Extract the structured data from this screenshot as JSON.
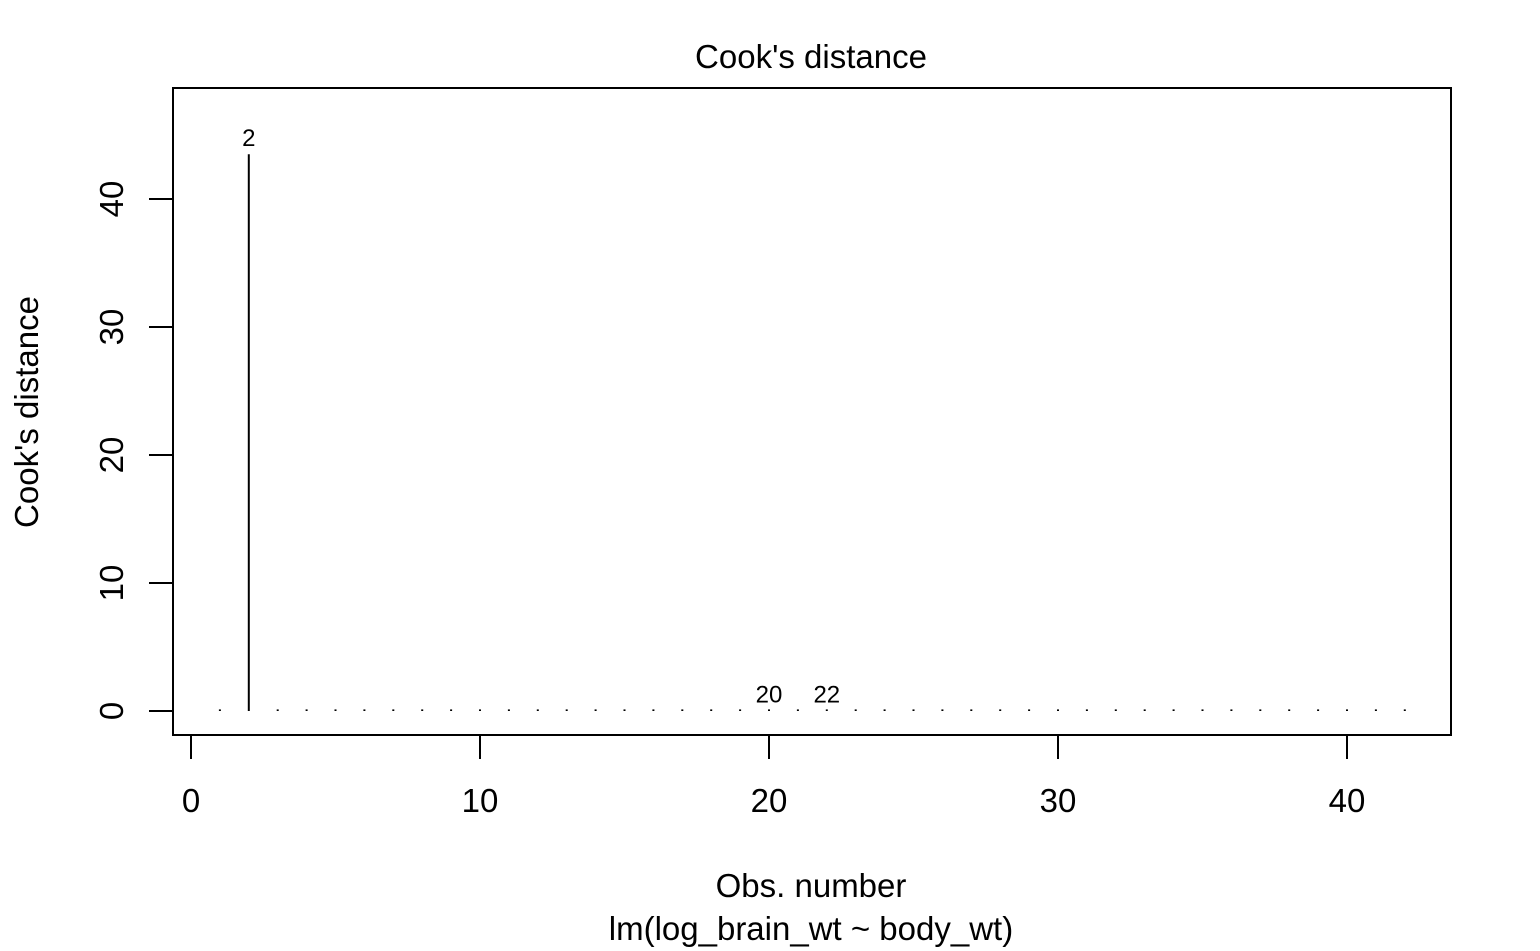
{
  "chart_data": {
    "type": "bar",
    "title": "Cook's distance",
    "xlabel": "Obs. number",
    "ylabel": "Cook's distance",
    "caption": "lm(log_brain_wt ~ body_wt)",
    "xlim": [
      0,
      43
    ],
    "ylim": [
      0,
      46
    ],
    "x_ticks": [
      0,
      10,
      20,
      30,
      40
    ],
    "y_ticks": [
      0,
      10,
      20,
      30,
      40
    ],
    "x": [
      1,
      2,
      3,
      4,
      5,
      6,
      7,
      8,
      9,
      10,
      11,
      12,
      13,
      14,
      15,
      16,
      17,
      18,
      19,
      20,
      21,
      22,
      23,
      24,
      25,
      26,
      27,
      28,
      29,
      30,
      31,
      32,
      33,
      34,
      35,
      36,
      37,
      38,
      39,
      40,
      41,
      42
    ],
    "values": [
      0.01,
      43.5,
      0.01,
      0.01,
      0.01,
      0.01,
      0.01,
      0.01,
      0.01,
      0.01,
      0.01,
      0.01,
      0.01,
      0.01,
      0.01,
      0.01,
      0.01,
      0.01,
      0.01,
      0.05,
      0.01,
      0.04,
      0.01,
      0.01,
      0.01,
      0.01,
      0.01,
      0.01,
      0.01,
      0.01,
      0.01,
      0.01,
      0.01,
      0.01,
      0.01,
      0.01,
      0.01,
      0.01,
      0.01,
      0.01,
      0.01,
      0.01
    ],
    "point_labels": [
      {
        "x": 2,
        "label": "2"
      },
      {
        "x": 20,
        "label": "20"
      },
      {
        "x": 22,
        "label": "22"
      }
    ],
    "grid": false,
    "legend": "none"
  }
}
